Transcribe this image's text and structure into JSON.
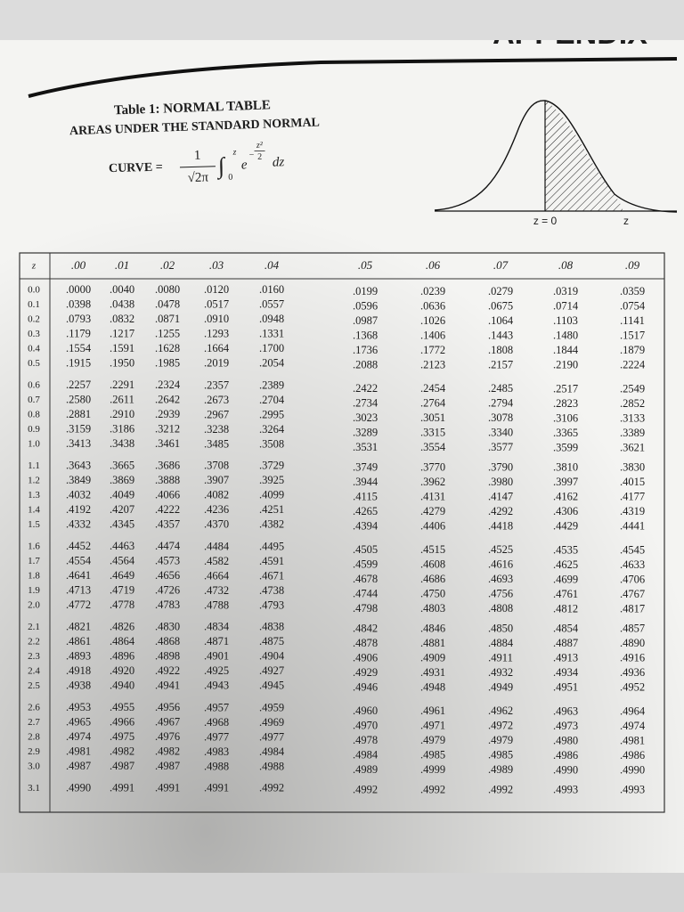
{
  "header": {
    "appendix": "APPENDIX",
    "title": "Table 1: NORMAL TABLE",
    "subtitle": "AREAS UNDER THE STANDARD NORMAL",
    "formula": {
      "lhs": "CURVE =",
      "numerator": "1",
      "denominator": "√2π",
      "upper_limit": "z",
      "lower_limit": "0",
      "base": "e",
      "exponent_sign": "−",
      "exponent_numerator": "z²",
      "exponent_denominator": "2",
      "differential": "dz"
    }
  },
  "figure": {
    "mean_label": "z = 0",
    "z_label": "z"
  },
  "table": {
    "header": [
      "z",
      ".00",
      ".01",
      ".02",
      ".03",
      ".04",
      ".05",
      ".06",
      ".07",
      ".08",
      ".09"
    ],
    "rows": [
      [
        "0.0",
        ".0000",
        ".0040",
        ".0080",
        ".0120",
        ".0160",
        ".0199",
        ".0239",
        ".0279",
        ".0319",
        ".0359"
      ],
      [
        "0.1",
        ".0398",
        ".0438",
        ".0478",
        ".0517",
        ".0557",
        ".0596",
        ".0636",
        ".0675",
        ".0714",
        ".0754"
      ],
      [
        "0.2",
        ".0793",
        ".0832",
        ".0871",
        ".0910",
        ".0948",
        ".0987",
        ".1026",
        ".1064",
        ".1103",
        ".1141"
      ],
      [
        "0.3",
        ".1179",
        ".1217",
        ".1255",
        ".1293",
        ".1331",
        ".1368",
        ".1406",
        ".1443",
        ".1480",
        ".1517"
      ],
      [
        "0.4",
        ".1554",
        ".1591",
        ".1628",
        ".1664",
        ".1700",
        ".1736",
        ".1772",
        ".1808",
        ".1844",
        ".1879"
      ],
      [
        "0.5",
        ".1915",
        ".1950",
        ".1985",
        ".2019",
        ".2054",
        ".2088",
        ".2123",
        ".2157",
        ".2190",
        ".2224"
      ],
      [
        "0.6",
        ".2257",
        ".2291",
        ".2324",
        ".2357",
        ".2389",
        ".2422",
        ".2454",
        ".2485",
        ".2517",
        ".2549"
      ],
      [
        "0.7",
        ".2580",
        ".2611",
        ".2642",
        ".2673",
        ".2704",
        ".2734",
        ".2764",
        ".2794",
        ".2823",
        ".2852"
      ],
      [
        "0.8",
        ".2881",
        ".2910",
        ".2939",
        ".2967",
        ".2995",
        ".3023",
        ".3051",
        ".3078",
        ".3106",
        ".3133"
      ],
      [
        "0.9",
        ".3159",
        ".3186",
        ".3212",
        ".3238",
        ".3264",
        ".3289",
        ".3315",
        ".3340",
        ".3365",
        ".3389"
      ],
      [
        "1.0",
        ".3413",
        ".3438",
        ".3461",
        ".3485",
        ".3508",
        ".3531",
        ".3554",
        ".3577",
        ".3599",
        ".3621"
      ],
      [
        "1.1",
        ".3643",
        ".3665",
        ".3686",
        ".3708",
        ".3729",
        ".3749",
        ".3770",
        ".3790",
        ".3810",
        ".3830"
      ],
      [
        "1.2",
        ".3849",
        ".3869",
        ".3888",
        ".3907",
        ".3925",
        ".3944",
        ".3962",
        ".3980",
        ".3997",
        ".4015"
      ],
      [
        "1.3",
        ".4032",
        ".4049",
        ".4066",
        ".4082",
        ".4099",
        ".4115",
        ".4131",
        ".4147",
        ".4162",
        ".4177"
      ],
      [
        "1.4",
        ".4192",
        ".4207",
        ".4222",
        ".4236",
        ".4251",
        ".4265",
        ".4279",
        ".4292",
        ".4306",
        ".4319"
      ],
      [
        "1.5",
        ".4332",
        ".4345",
        ".4357",
        ".4370",
        ".4382",
        ".4394",
        ".4406",
        ".4418",
        ".4429",
        ".4441"
      ],
      [
        "1.6",
        ".4452",
        ".4463",
        ".4474",
        ".4484",
        ".4495",
        ".4505",
        ".4515",
        ".4525",
        ".4535",
        ".4545"
      ],
      [
        "1.7",
        ".4554",
        ".4564",
        ".4573",
        ".4582",
        ".4591",
        ".4599",
        ".4608",
        ".4616",
        ".4625",
        ".4633"
      ],
      [
        "1.8",
        ".4641",
        ".4649",
        ".4656",
        ".4664",
        ".4671",
        ".4678",
        ".4686",
        ".4693",
        ".4699",
        ".4706"
      ],
      [
        "1.9",
        ".4713",
        ".4719",
        ".4726",
        ".4732",
        ".4738",
        ".4744",
        ".4750",
        ".4756",
        ".4761",
        ".4767"
      ],
      [
        "2.0",
        ".4772",
        ".4778",
        ".4783",
        ".4788",
        ".4793",
        ".4798",
        ".4803",
        ".4808",
        ".4812",
        ".4817"
      ],
      [
        "2.1",
        ".4821",
        ".4826",
        ".4830",
        ".4834",
        ".4838",
        ".4842",
        ".4846",
        ".4850",
        ".4854",
        ".4857"
      ],
      [
        "2.2",
        ".4861",
        ".4864",
        ".4868",
        ".4871",
        ".4875",
        ".4878",
        ".4881",
        ".4884",
        ".4887",
        ".4890"
      ],
      [
        "2.3",
        ".4893",
        ".4896",
        ".4898",
        ".4901",
        ".4904",
        ".4906",
        ".4909",
        ".4911",
        ".4913",
        ".4916"
      ],
      [
        "2.4",
        ".4918",
        ".4920",
        ".4922",
        ".4925",
        ".4927",
        ".4929",
        ".4931",
        ".4932",
        ".4934",
        ".4936"
      ],
      [
        "2.5",
        ".4938",
        ".4940",
        ".4941",
        ".4943",
        ".4945",
        ".4946",
        ".4948",
        ".4949",
        ".4951",
        ".4952"
      ],
      [
        "2.6",
        ".4953",
        ".4955",
        ".4956",
        ".4957",
        ".4959",
        ".4960",
        ".4961",
        ".4962",
        ".4963",
        ".4964"
      ],
      [
        "2.7",
        ".4965",
        ".4966",
        ".4967",
        ".4968",
        ".4969",
        ".4970",
        ".4971",
        ".4972",
        ".4973",
        ".4974"
      ],
      [
        "2.8",
        ".4974",
        ".4975",
        ".4976",
        ".4977",
        ".4977",
        ".4978",
        ".4979",
        ".4979",
        ".4980",
        ".4981"
      ],
      [
        "2.9",
        ".4981",
        ".4982",
        ".4982",
        ".4983",
        ".4984",
        ".4984",
        ".4985",
        ".4985",
        ".4986",
        ".4986"
      ],
      [
        "3.0",
        ".4987",
        ".4987",
        ".4987",
        ".4988",
        ".4988",
        ".4989",
        ".4999",
        ".4989",
        ".4990",
        ".4990"
      ],
      [
        "3.1",
        ".4990",
        ".4991",
        ".4991",
        ".4991",
        ".4992",
        ".4992",
        ".4992",
        ".4992",
        ".4993",
        ".4993"
      ]
    ]
  }
}
